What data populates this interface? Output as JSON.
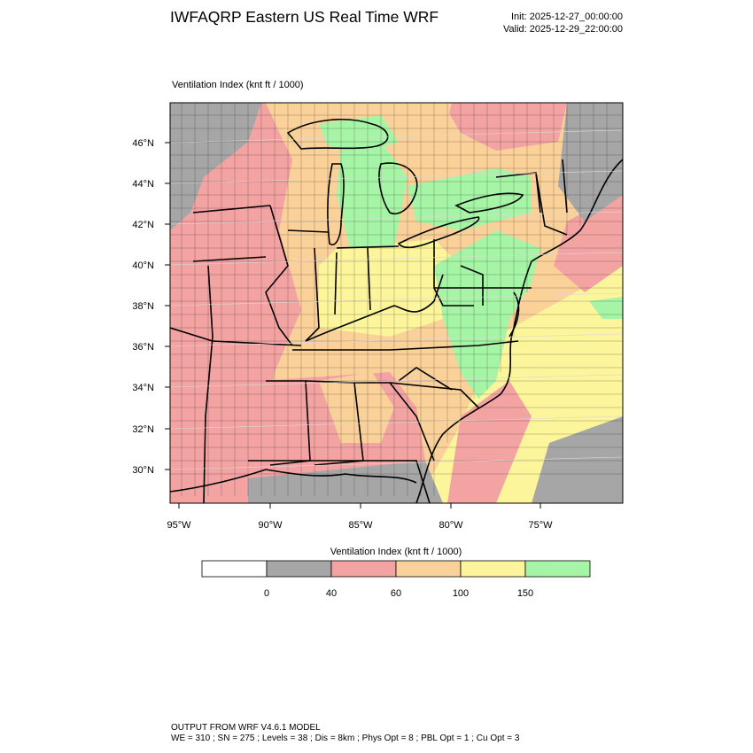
{
  "header": {
    "title": "IWFAQRP Eastern US Real Time WRF",
    "init": "Init: 2025-12-27_00:00:00",
    "valid": "Valid: 2025-12-29_22:00:00"
  },
  "field_label": "Ventilation Index   (knt ft / 1000)",
  "map": {
    "lat_ticks": [
      "46°N",
      "44°N",
      "42°N",
      "40°N",
      "38°N",
      "36°N",
      "34°N",
      "32°N",
      "30°N"
    ],
    "lon_ticks": [
      "95°W",
      "90°W",
      "85°W",
      "80°W",
      "75°W"
    ]
  },
  "legend": {
    "title": "Ventilation Index  (knt ft / 1000)",
    "colors": [
      "#ffffff",
      "#a6a6a6",
      "#f4a3a3",
      "#fbd19a",
      "#fdf59b",
      "#a6f5a6"
    ],
    "labels": [
      "0",
      "40",
      "60",
      "100",
      "150"
    ]
  },
  "footer": {
    "line1": "OUTPUT FROM WRF V4.6.1 MODEL",
    "line2": "WE = 310 ; SN = 275 ; Levels = 38 ; Dis = 8km ; Phys Opt = 8 ; PBL Opt = 1 ; Cu Opt = 3"
  },
  "colors": {
    "gray": "#a6a6a6",
    "red": "#f4a3a3",
    "orange": "#fbd19a",
    "yellow": "#fdf59b",
    "green": "#a6f5a6"
  }
}
